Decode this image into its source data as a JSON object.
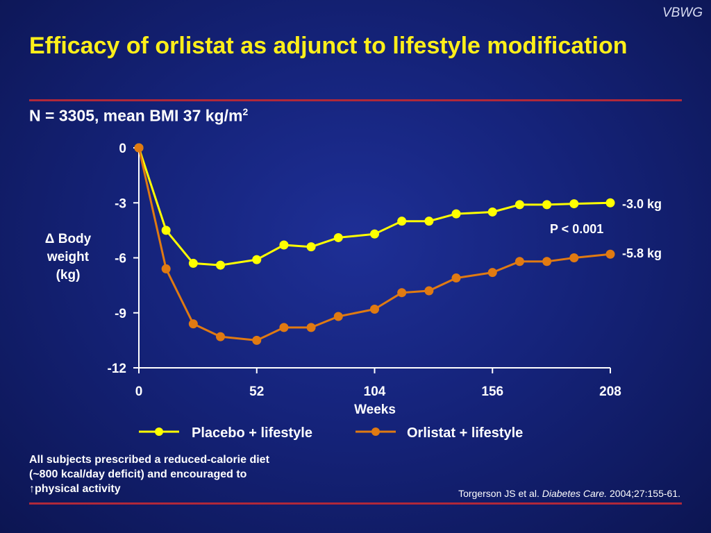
{
  "header": {
    "brand": "VBWG",
    "title": "Efficacy of orlistat as adjunct to lifestyle modification",
    "subtitle_text": "N = 3305, mean BMI 37 kg/m",
    "subtitle_sup": "2"
  },
  "colors": {
    "placebo": "#ffff00",
    "orlistat": "#e07a12",
    "axis": "#ffffff",
    "rule": "#b0283a",
    "title": "#ffef1a"
  },
  "chart_data": {
    "type": "line",
    "xlabel": "Weeks",
    "ylabel": [
      "Δ Body",
      "weight",
      "(kg)"
    ],
    "xlim": [
      0,
      208
    ],
    "ylim": [
      -12,
      0
    ],
    "xticks": [
      0,
      52,
      104,
      156,
      208
    ],
    "yticks": [
      0,
      -3,
      -6,
      -9,
      -12
    ],
    "grid": false,
    "legend_position": "bottom",
    "series": [
      {
        "name": "Placebo + lifestyle",
        "color": "#ffff00",
        "end_label": "-3.0 kg",
        "x": [
          0,
          12,
          24,
          36,
          52,
          64,
          76,
          88,
          104,
          116,
          128,
          140,
          156,
          168,
          180,
          192,
          208
        ],
        "y": [
          0,
          -4.5,
          -6.3,
          -6.4,
          -6.1,
          -5.3,
          -5.4,
          -4.9,
          -4.7,
          -4.0,
          -4.0,
          -3.6,
          -3.5,
          -3.1,
          -3.1,
          -3.05,
          -3.0
        ]
      },
      {
        "name": "Orlistat + lifestyle",
        "color": "#e07a12",
        "end_label": "-5.8 kg",
        "x": [
          0,
          12,
          24,
          36,
          52,
          64,
          76,
          88,
          104,
          116,
          128,
          140,
          156,
          168,
          180,
          192,
          208
        ],
        "y": [
          0,
          -6.6,
          -9.6,
          -10.3,
          -10.5,
          -9.8,
          -9.8,
          -9.2,
          -8.8,
          -7.9,
          -7.8,
          -7.1,
          -6.8,
          -6.2,
          -6.2,
          -6.0,
          -5.8
        ]
      }
    ],
    "annotations": [
      {
        "text": "P < 0.001"
      }
    ]
  },
  "footnote": {
    "line1": "All subjects prescribed a reduced-calorie diet",
    "line2": "(~800 kcal/day deficit) and encouraged to",
    "arrow": "↑",
    "line3": "physical activity"
  },
  "citation": {
    "authors": "Torgerson JS et al. ",
    "journal": "Diabetes Care.",
    "details": " 2004;27:155-61."
  }
}
